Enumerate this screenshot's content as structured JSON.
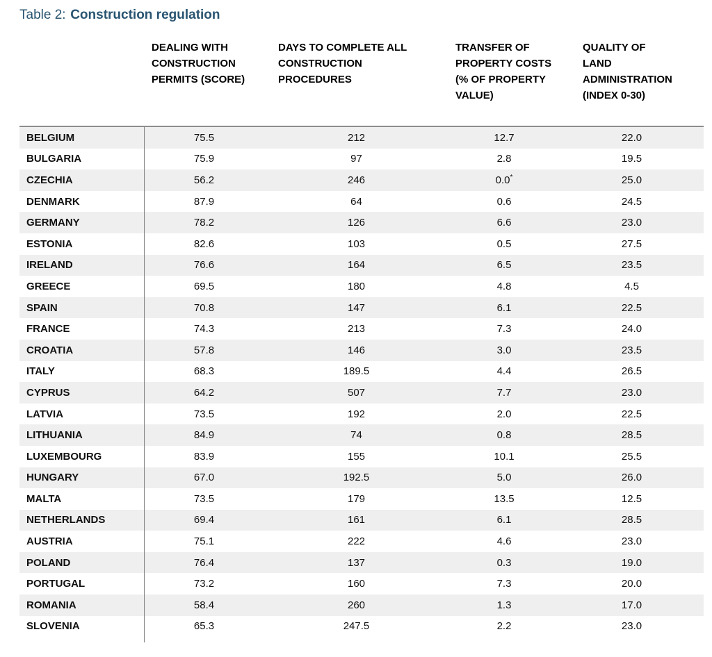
{
  "title": {
    "prefix": "Table 2:",
    "emphasis": "Construction regulation"
  },
  "colors": {
    "title": "#295471",
    "stripe": "#efefef",
    "divider": "#7f7f7f",
    "top_border": "#8c8c8c"
  },
  "table": {
    "headers": [
      {
        "id": "score",
        "label": "DEALING WITH\nCONSTRUCTION\nPERMITS (SCORE)"
      },
      {
        "id": "days",
        "label": "DAYS TO COMPLETE ALL\nCONSTRUCTION\nPROCEDURES"
      },
      {
        "id": "transfer",
        "label": "TRANSFER OF\nPROPERTY COSTS\n(% OF PROPERTY\nVALUE)"
      },
      {
        "id": "quality",
        "label": "QUALITY OF\nLAND\nADMINISTRATION\n(INDEX 0-30)"
      }
    ],
    "rows": [
      {
        "country": "BELGIUM",
        "score": "75.5",
        "days": "212",
        "transfer": "12.7",
        "quality": "22.0"
      },
      {
        "country": "BULGARIA",
        "score": "75.9",
        "days": "97",
        "transfer": "2.8",
        "quality": "19.5"
      },
      {
        "country": "CZECHIA",
        "score": "56.2",
        "days": "246",
        "transfer": "0.0",
        "transfer_note": "*",
        "quality": "25.0"
      },
      {
        "country": "DENMARK",
        "score": "87.9",
        "days": "64",
        "transfer": "0.6",
        "quality": "24.5"
      },
      {
        "country": "GERMANY",
        "score": "78.2",
        "days": "126",
        "transfer": "6.6",
        "quality": "23.0"
      },
      {
        "country": "ESTONIA",
        "score": "82.6",
        "days": "103",
        "transfer": "0.5",
        "quality": "27.5"
      },
      {
        "country": "IRELAND",
        "score": "76.6",
        "days": "164",
        "transfer": "6.5",
        "quality": "23.5"
      },
      {
        "country": "GREECE",
        "score": "69.5",
        "days": "180",
        "transfer": "4.8",
        "quality": "4.5"
      },
      {
        "country": "SPAIN",
        "score": "70.8",
        "days": "147",
        "transfer": "6.1",
        "quality": "22.5"
      },
      {
        "country": "FRANCE",
        "score": "74.3",
        "days": "213",
        "transfer": "7.3",
        "quality": "24.0"
      },
      {
        "country": "CROATIA",
        "score": "57.8",
        "days": "146",
        "transfer": "3.0",
        "quality": "23.5"
      },
      {
        "country": "ITALY",
        "score": "68.3",
        "days": "189.5",
        "transfer": "4.4",
        "quality": "26.5"
      },
      {
        "country": "CYPRUS",
        "score": "64.2",
        "days": "507",
        "transfer": "7.7",
        "quality": "23.0"
      },
      {
        "country": "LATVIA",
        "score": "73.5",
        "days": "192",
        "transfer": "2.0",
        "quality": "22.5"
      },
      {
        "country": "LITHUANIA",
        "score": "84.9",
        "days": "74",
        "transfer": "0.8",
        "quality": "28.5"
      },
      {
        "country": "LUXEMBOURG",
        "score": "83.9",
        "days": "155",
        "transfer": "10.1",
        "quality": "25.5"
      },
      {
        "country": "HUNGARY",
        "score": "67.0",
        "days": "192.5",
        "transfer": "5.0",
        "quality": "26.0"
      },
      {
        "country": "MALTA",
        "score": "73.5",
        "days": "179",
        "transfer": "13.5",
        "quality": "12.5"
      },
      {
        "country": "NETHERLANDS",
        "score": "69.4",
        "days": "161",
        "transfer": "6.1",
        "quality": "28.5"
      },
      {
        "country": "AUSTRIA",
        "score": "75.1",
        "days": "222",
        "transfer": "4.6",
        "quality": "23.0"
      },
      {
        "country": "POLAND",
        "score": "76.4",
        "days": "137",
        "transfer": "0.3",
        "quality": "19.0"
      },
      {
        "country": "PORTUGAL",
        "score": "73.2",
        "days": "160",
        "transfer": "7.3",
        "quality": "20.0"
      },
      {
        "country": "ROMANIA",
        "score": "58.4",
        "days": "260",
        "transfer": "1.3",
        "quality": "17.0"
      },
      {
        "country": "SLOVENIA",
        "score": "65.3",
        "days": "247.5",
        "transfer": "2.2",
        "quality": "23.0"
      }
    ]
  }
}
